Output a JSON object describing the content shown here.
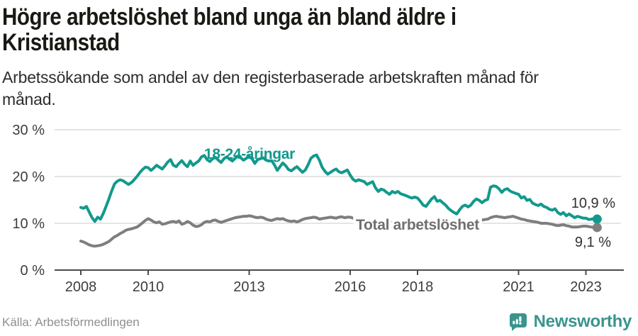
{
  "header": {
    "title": "Högre arbetslöshet bland unga än bland äldre i Kristianstad",
    "subtitle": "Arbetssökande som andel av den registerbaserade arbetskraften månad för månad."
  },
  "footer": {
    "source": "Källa: Arbetsförmedlingen",
    "brand": "Newsworthy",
    "brand_icon": "newsworthy-speech-bubble-bar-chart-icon",
    "brand_color": "#3a948e"
  },
  "colors": {
    "accent_teal": "#12998c",
    "line_gray": "#7e7e7e",
    "grid": "#dcdcdc",
    "axis": "#4a4a4a",
    "axis_text": "#3d3d3d",
    "value_label_text": "#303030",
    "total_label_text": "#6f6f6f"
  },
  "chart_data": {
    "type": "line",
    "title": "Högre arbetslöshet bland unga än bland äldre i Kristianstad",
    "subtitle": "Arbetssökande som andel av den registerbaserade arbetskraften månad för månad.",
    "source": "Källa: Arbetsförmedlingen",
    "x_unit": "month",
    "x_start": "2008-01",
    "x_end": "2023-05",
    "xticks": [
      2008,
      2010,
      2013,
      2016,
      2018,
      2021,
      2023
    ],
    "yticks": [
      {
        "value": 0,
        "label": "0 %"
      },
      {
        "value": 10,
        "label": "10 %"
      },
      {
        "value": 20,
        "label": "20 %"
      },
      {
        "value": 30,
        "label": "30 %"
      }
    ],
    "ylim": [
      0,
      32
    ],
    "grid": true,
    "legend_position": "inline-labels",
    "series": [
      {
        "name": "18-24-åringar",
        "color": "#12998c",
        "end_value": 10.9,
        "end_label": "10,9 %",
        "values": [
          13.4,
          13.2,
          13.6,
          12.4,
          11.2,
          10.4,
          11.3,
          10.9,
          12.1,
          13.6,
          15.2,
          16.9,
          18.4,
          19.0,
          19.3,
          19.1,
          18.7,
          18.3,
          18.7,
          19.3,
          20.0,
          20.8,
          21.5,
          22.0,
          21.9,
          21.3,
          21.8,
          22.4,
          22.0,
          21.6,
          22.3,
          23.1,
          23.6,
          22.4,
          22.1,
          22.8,
          23.4,
          22.6,
          22.1,
          23.3,
          22.4,
          22.9,
          23.3,
          24.2,
          24.5,
          23.6,
          23.2,
          23.8,
          24.1,
          23.5,
          23.0,
          23.8,
          24.2,
          23.7,
          23.3,
          23.9,
          24.4,
          24.0,
          23.5,
          23.9,
          24.3,
          23.8,
          22.8,
          23.6,
          23.8,
          24.0,
          23.5,
          23.3,
          23.4,
          22.5,
          21.3,
          22.1,
          22.9,
          22.3,
          21.5,
          21.2,
          21.7,
          22.1,
          21.5,
          20.9,
          21.4,
          22.5,
          23.9,
          24.4,
          24.6,
          23.5,
          22.0,
          21.1,
          20.5,
          20.9,
          21.3,
          21.6,
          21.0,
          20.8,
          21.1,
          21.4,
          20.3,
          19.4,
          19.0,
          19.3,
          19.1,
          18.9,
          18.3,
          18.6,
          18.9,
          17.6,
          16.8,
          17.3,
          17.1,
          16.6,
          16.2,
          16.8,
          16.5,
          16.8,
          16.3,
          16.1,
          15.9,
          15.6,
          15.4,
          15.6,
          15.4,
          14.7,
          13.9,
          13.6,
          14.4,
          15.2,
          15.7,
          14.7,
          14.9,
          14.4,
          13.9,
          13.2,
          12.7,
          12.3,
          12.0,
          12.9,
          13.6,
          13.9,
          13.5,
          13.9,
          14.7,
          15.2,
          14.9,
          14.4,
          14.9,
          15.1,
          17.7,
          18.0,
          17.9,
          17.4,
          16.6,
          17.2,
          17.4,
          16.9,
          16.6,
          16.4,
          16.2,
          15.4,
          15.7,
          14.9,
          15.1,
          14.3,
          14.0,
          13.8,
          14.1,
          13.6,
          13.4,
          13.0,
          12.8,
          13.1,
          12.3,
          11.9,
          12.3,
          11.6,
          12.0,
          11.6,
          11.2,
          11.5,
          11.3,
          11.1,
          11.1,
          10.8,
          10.9,
          11.0,
          10.9
        ]
      },
      {
        "name": "Total arbetslöshet",
        "color": "#7e7e7e",
        "end_value": 9.1,
        "end_label": "9,1 %",
        "values": [
          6.2,
          6.0,
          5.7,
          5.4,
          5.2,
          5.1,
          5.2,
          5.3,
          5.5,
          5.8,
          6.1,
          6.6,
          7.1,
          7.4,
          7.8,
          8.1,
          8.5,
          8.7,
          8.8,
          9.0,
          9.2,
          9.6,
          10.1,
          10.6,
          11.0,
          10.7,
          10.3,
          10.1,
          10.3,
          9.8,
          9.9,
          10.1,
          10.3,
          10.4,
          10.2,
          10.5,
          9.8,
          10.0,
          10.4,
          10.1,
          9.6,
          9.3,
          9.4,
          9.7,
          10.2,
          10.4,
          10.3,
          10.6,
          10.7,
          10.4,
          10.2,
          10.4,
          10.6,
          10.8,
          11.0,
          11.2,
          11.3,
          11.4,
          11.5,
          11.5,
          11.6,
          11.5,
          11.3,
          11.2,
          11.3,
          11.2,
          10.9,
          10.7,
          10.6,
          10.8,
          11.0,
          10.9,
          11.0,
          10.7,
          10.5,
          10.4,
          10.5,
          10.3,
          10.5,
          10.8,
          11.0,
          11.1,
          11.2,
          11.3,
          11.2,
          10.9,
          11.0,
          11.1,
          11.2,
          11.3,
          11.2,
          11.1,
          11.3,
          11.4,
          11.2,
          11.3,
          11.3,
          11.1,
          10.9,
          10.8,
          10.7,
          10.6,
          10.5,
          10.5,
          10.6,
          10.5,
          10.4,
          10.4,
          10.3,
          10.2,
          10.2,
          10.1,
          10.1,
          10.0,
          10.0,
          9.9,
          9.9,
          9.8,
          9.8,
          9.9,
          9.9,
          9.8,
          9.7,
          9.6,
          9.7,
          9.8,
          9.9,
          9.8,
          9.7,
          9.6,
          9.7,
          9.8,
          9.8,
          9.9,
          9.9,
          10.0,
          10.0,
          10.1,
          10.2,
          10.3,
          10.4,
          10.5,
          10.6,
          10.7,
          10.8,
          10.9,
          11.2,
          11.4,
          11.5,
          11.4,
          11.3,
          11.2,
          11.3,
          11.4,
          11.5,
          11.3,
          11.1,
          10.9,
          10.8,
          10.6,
          10.5,
          10.4,
          10.3,
          10.2,
          10.0,
          10.0,
          10.0,
          9.9,
          9.8,
          9.6,
          9.5,
          9.6,
          9.7,
          9.5,
          9.4,
          9.2,
          9.2,
          9.2,
          9.3,
          9.4,
          9.4,
          9.3,
          9.2,
          9.1,
          9.1
        ]
      }
    ]
  }
}
